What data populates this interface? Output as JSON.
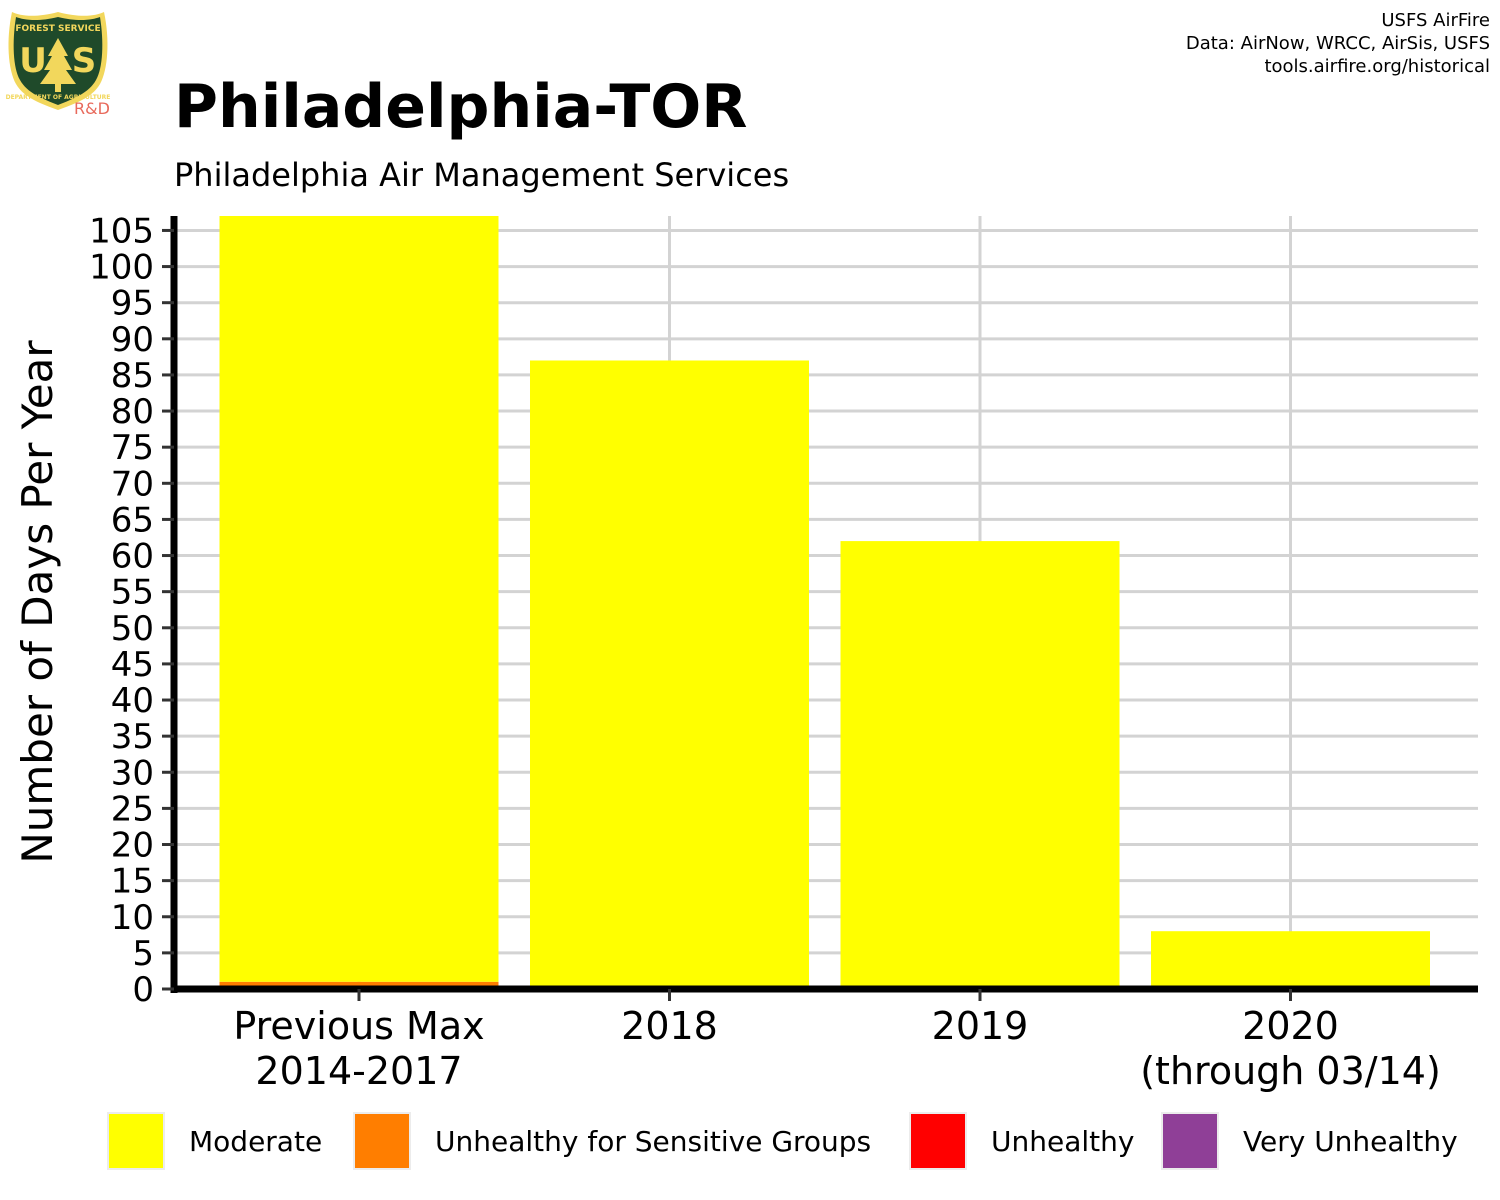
{
  "logo": {
    "top_text": "FOREST SERVICE",
    "letters_left": "U",
    "letters_right": "S",
    "bottom_text": "DEPARTMENT OF AGRICULTURE",
    "rd": "R&D",
    "colors": {
      "shield": "#1f4a2a",
      "gold": "#f2d75c"
    }
  },
  "credits": [
    "USFS AirFire",
    "Data: AirNow, WRCC, AirSis, USFS",
    "tools.airfire.org/historical"
  ],
  "chart_data": {
    "type": "bar",
    "stacked": true,
    "title": "Philadelphia-TOR",
    "subtitle": "Philadelphia Air Management Services",
    "ylabel": "Number of Days Per Year",
    "xlabel": "",
    "categories": [
      [
        "Previous Max",
        "2014-2017"
      ],
      [
        "2018"
      ],
      [
        "2019"
      ],
      [
        "2020",
        "(through 03/14)"
      ]
    ],
    "series": [
      {
        "name": "Unhealthy for Sensitive Groups",
        "color": "#ff7e00",
        "values": [
          1,
          0,
          0,
          0
        ]
      },
      {
        "name": "Moderate",
        "color": "#ffff00",
        "values": [
          106,
          87,
          62,
          8
        ]
      },
      {
        "name": "Unhealthy",
        "color": "#ff0000",
        "values": [
          0,
          0,
          0,
          0
        ]
      },
      {
        "name": "Very Unhealthy",
        "color": "#8f3f97",
        "values": [
          0,
          0,
          0,
          0
        ]
      }
    ],
    "legend_order": [
      "Moderate",
      "Unhealthy for Sensitive Groups",
      "Unhealthy",
      "Very Unhealthy"
    ],
    "ylim": [
      0,
      107
    ],
    "yticks": [
      0,
      5,
      10,
      15,
      20,
      25,
      30,
      35,
      40,
      45,
      50,
      55,
      60,
      65,
      70,
      75,
      80,
      85,
      90,
      95,
      100,
      105
    ],
    "grid": true,
    "legend_position": "bottom"
  }
}
